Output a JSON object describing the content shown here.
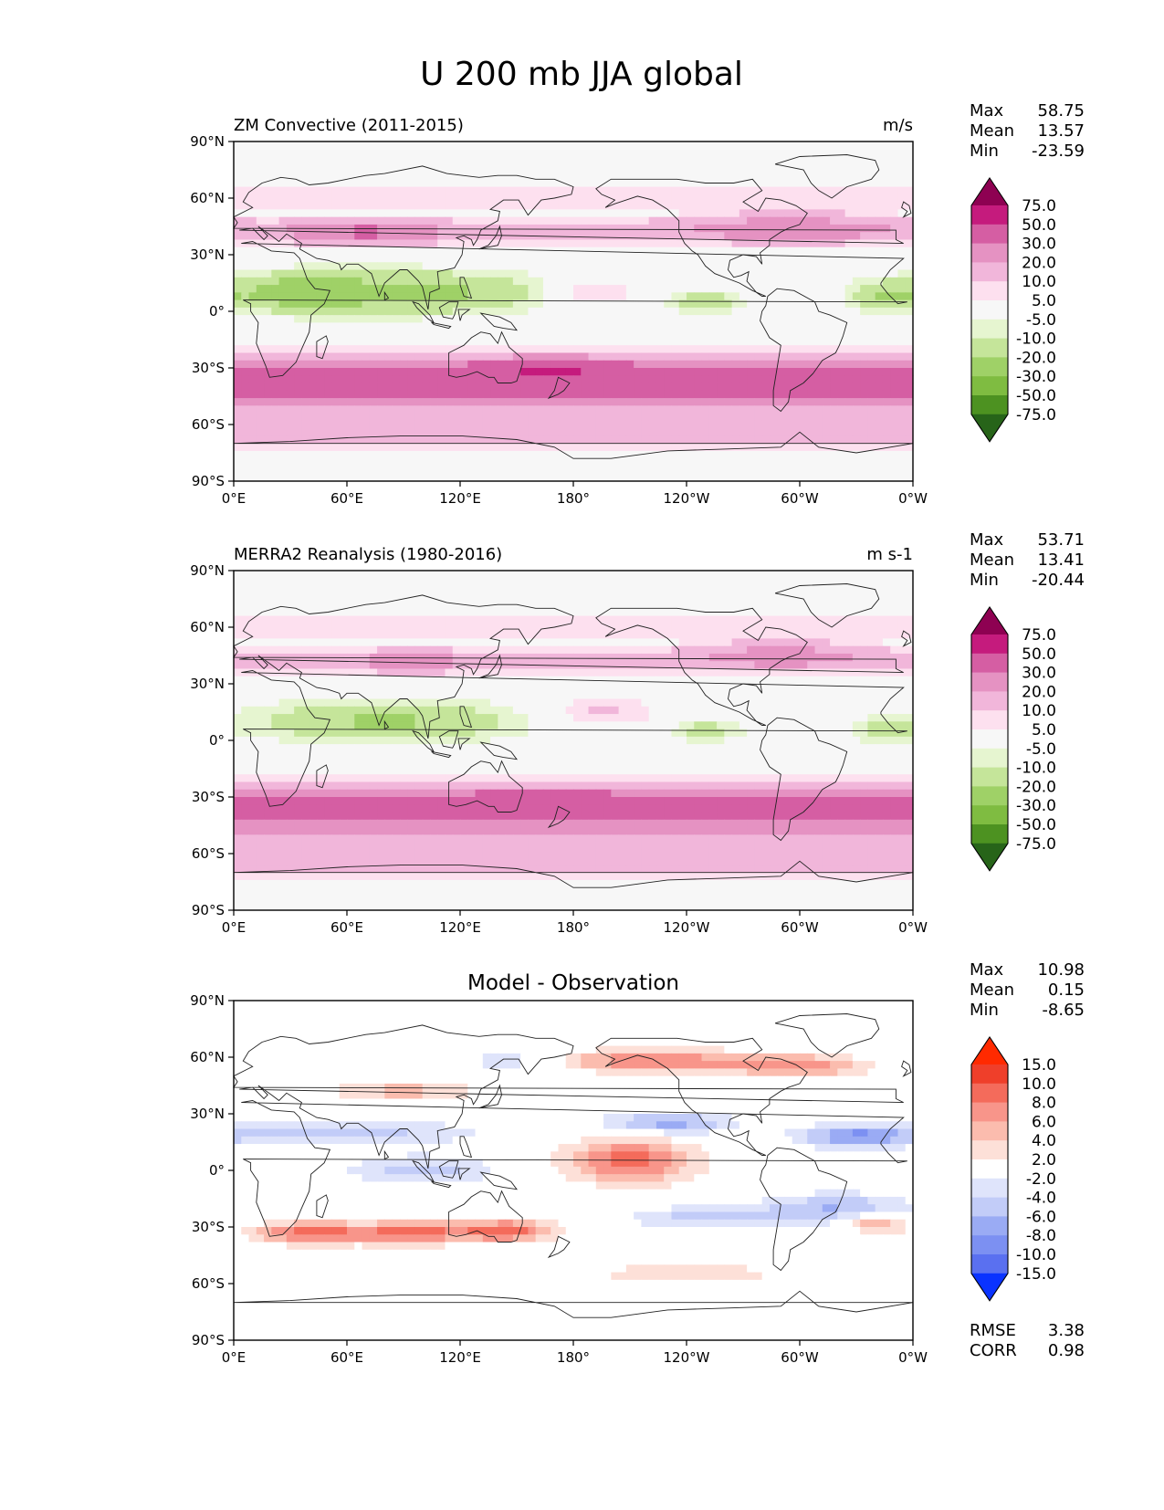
{
  "title": "U 200 mb JJA global",
  "colors": {
    "pos": [
      "#f7f7f7",
      "#fde0ef",
      "#f1b6da",
      "#e592c2",
      "#d55ea3",
      "#c51b7d",
      "#8e0152"
    ],
    "neg": [
      "#f7f7f7",
      "#e6f5d0",
      "#c5e59a",
      "#9fd167",
      "#7fbc41",
      "#4d9221",
      "#276419"
    ],
    "diff_pos": [
      "#ffffff",
      "#fde0d8",
      "#fbbcae",
      "#f8958a",
      "#f46b5b",
      "#ef3f2a",
      "#ff2a00"
    ],
    "diff_neg": [
      "#ffffff",
      "#dfe4fb",
      "#c2ccf8",
      "#9aabf4",
      "#7c90f2",
      "#5a70f0",
      "#0a33ff"
    ],
    "ocean": "#f7f7f7",
    "coast": "#222222"
  },
  "axes": {
    "lat_ticks": [
      "90°N",
      "60°N",
      "30°N",
      "0°",
      "30°S",
      "60°S",
      "90°S"
    ],
    "lon_ticks": [
      "0°E",
      "60°E",
      "120°E",
      "180°",
      "120°W",
      "60°W",
      "0°W"
    ]
  },
  "panels": [
    {
      "id": "model",
      "left_title": "ZM Convective (2011-2015)",
      "center_title": "",
      "right_title": "m/s",
      "stats": [
        {
          "label": "Max",
          "value": "58.75"
        },
        {
          "label": "Mean",
          "value": "13.57"
        },
        {
          "label": "Min",
          "value": "-23.59"
        }
      ],
      "colorbar_labels": [
        "75.0",
        "50.0",
        "30.0",
        "20.0",
        "10.0",
        "5.0",
        "-5.0",
        "-10.0",
        "-20.0",
        "-30.0",
        "-50.0",
        "-75.0"
      ],
      "metrics": []
    },
    {
      "id": "obs",
      "left_title": "MERRA2 Reanalysis (1980-2016)",
      "center_title": "",
      "right_title": "m s-1",
      "stats": [
        {
          "label": "Max",
          "value": "53.71"
        },
        {
          "label": "Mean",
          "value": "13.41"
        },
        {
          "label": "Min",
          "value": "-20.44"
        }
      ],
      "colorbar_labels": [
        "75.0",
        "50.0",
        "30.0",
        "20.0",
        "10.0",
        "5.0",
        "-5.0",
        "-10.0",
        "-20.0",
        "-30.0",
        "-50.0",
        "-75.0"
      ],
      "metrics": []
    },
    {
      "id": "diff",
      "left_title": "",
      "center_title": "Model - Observation",
      "right_title": "",
      "stats": [
        {
          "label": "Max",
          "value": "10.98"
        },
        {
          "label": "Mean",
          "value": "0.15"
        },
        {
          "label": "Min",
          "value": "-8.65"
        }
      ],
      "colorbar_labels": [
        "15.0",
        "10.0",
        "8.0",
        "6.0",
        "4.0",
        "2.0",
        "-2.0",
        "-4.0",
        "-6.0",
        "-8.0",
        "-10.0",
        "-15.0"
      ],
      "metrics": [
        {
          "label": "RMSE",
          "value": "3.38"
        },
        {
          "label": "CORR",
          "value": "0.98"
        }
      ]
    }
  ],
  "chart_data": [
    {
      "type": "heatmap",
      "title": "ZM Convective (2011-2015)",
      "units": "m/s",
      "variable": "U 200 mb JJA",
      "xlim": [
        0,
        360
      ],
      "ylim": [
        -90,
        90
      ],
      "levels": [
        -75,
        -50,
        -30,
        -20,
        -10,
        -5,
        5,
        10,
        20,
        30,
        50,
        75
      ],
      "features": [
        {
          "kind": "band",
          "lat": -37,
          "width": 13,
          "amp": 38
        },
        {
          "kind": "band",
          "lat": 42,
          "width": 7,
          "amp": 20
        },
        {
          "kind": "band",
          "lat": 60,
          "width": 6,
          "amp": 8
        },
        {
          "kind": "band",
          "lat": -62,
          "width": 12,
          "amp": 18
        },
        {
          "kind": "blob",
          "lon": 168,
          "lat": -30,
          "rlon": 40,
          "rlat": 6,
          "amp": 22
        },
        {
          "kind": "blob",
          "lon": 70,
          "lat": 42,
          "rlon": 28,
          "rlat": 5,
          "amp": 14
        },
        {
          "kind": "blob",
          "lon": 295,
          "lat": 48,
          "rlon": 38,
          "rlat": 7,
          "amp": 14
        },
        {
          "kind": "blob",
          "lon": 90,
          "lat": 10,
          "rlon": 75,
          "rlat": 11,
          "amp": -26
        },
        {
          "kind": "blob",
          "lon": 30,
          "lat": 10,
          "rlon": 30,
          "rlat": 10,
          "amp": -16
        },
        {
          "kind": "blob",
          "lon": 250,
          "lat": 5,
          "rlon": 20,
          "rlat": 6,
          "amp": -16
        },
        {
          "kind": "blob",
          "lon": 345,
          "lat": 8,
          "rlon": 18,
          "rlat": 8,
          "amp": -18
        },
        {
          "kind": "blob",
          "lon": 190,
          "lat": 10,
          "rlon": 25,
          "rlat": 8,
          "amp": 14
        }
      ],
      "stats": {
        "max": 58.75,
        "mean": 13.57,
        "min": -23.59
      }
    },
    {
      "type": "heatmap",
      "title": "MERRA2 Reanalysis (1980-2016)",
      "units": "m s-1",
      "variable": "U 200 mb JJA",
      "xlim": [
        0,
        360
      ],
      "ylim": [
        -90,
        90
      ],
      "levels": [
        -75,
        -50,
        -30,
        -20,
        -10,
        -5,
        5,
        10,
        20,
        30,
        50,
        75
      ],
      "features": [
        {
          "kind": "band",
          "lat": -37,
          "width": 13,
          "amp": 36
        },
        {
          "kind": "band",
          "lat": 42,
          "width": 7,
          "amp": 18
        },
        {
          "kind": "band",
          "lat": 60,
          "width": 6,
          "amp": 8
        },
        {
          "kind": "band",
          "lat": -62,
          "width": 12,
          "amp": 17
        },
        {
          "kind": "blob",
          "lon": 165,
          "lat": -30,
          "rlon": 40,
          "rlat": 5,
          "amp": 20
        },
        {
          "kind": "blob",
          "lon": 95,
          "lat": 42,
          "rlon": 20,
          "rlat": 5,
          "amp": 14
        },
        {
          "kind": "blob",
          "lon": 290,
          "lat": 48,
          "rlon": 38,
          "rlat": 7,
          "amp": 14
        },
        {
          "kind": "blob",
          "lon": 80,
          "lat": 10,
          "rlon": 70,
          "rlat": 11,
          "amp": -22
        },
        {
          "kind": "blob",
          "lon": 250,
          "lat": 5,
          "rlon": 20,
          "rlat": 6,
          "amp": -14
        },
        {
          "kind": "blob",
          "lon": 345,
          "lat": 5,
          "rlon": 15,
          "rlat": 6,
          "amp": -14
        },
        {
          "kind": "blob",
          "lon": 195,
          "lat": 15,
          "rlon": 30,
          "rlat": 8,
          "amp": 12
        }
      ],
      "stats": {
        "max": 53.71,
        "mean": 13.41,
        "min": -20.44
      }
    },
    {
      "type": "heatmap",
      "title": "Model - Observation",
      "units": "",
      "variable": "U 200 mb JJA difference",
      "xlim": [
        0,
        360
      ],
      "ylim": [
        -90,
        90
      ],
      "levels": [
        -15,
        -10,
        -8,
        -6,
        -4,
        -2,
        2,
        4,
        6,
        8,
        10,
        15
      ],
      "features": [
        {
          "kind": "blob",
          "lon": 40,
          "lat": -33,
          "rlon": 30,
          "rlat": 6,
          "amp": 9
        },
        {
          "kind": "blob",
          "lon": 95,
          "lat": -33,
          "rlon": 30,
          "rlat": 6,
          "amp": 9
        },
        {
          "kind": "blob",
          "lon": 145,
          "lat": -32,
          "rlon": 25,
          "rlat": 6,
          "amp": 9
        },
        {
          "kind": "blob",
          "lon": 150,
          "lat": 58,
          "rlon": 30,
          "rlat": 6,
          "amp": -4
        },
        {
          "kind": "blob",
          "lon": 220,
          "lat": 58,
          "rlon": 55,
          "rlat": 6,
          "amp": 8
        },
        {
          "kind": "blob",
          "lon": 300,
          "lat": 55,
          "rlon": 35,
          "rlat": 6,
          "amp": 7
        },
        {
          "kind": "blob",
          "lon": 210,
          "lat": 5,
          "rlon": 35,
          "rlat": 12,
          "amp": 9
        },
        {
          "kind": "blob",
          "lon": 90,
          "lat": 42,
          "rlon": 40,
          "rlat": 5,
          "amp": 5
        },
        {
          "kind": "blob",
          "lon": 60,
          "lat": 20,
          "rlon": 70,
          "rlat": 7,
          "amp": -5
        },
        {
          "kind": "blob",
          "lon": 230,
          "lat": 25,
          "rlon": 35,
          "rlat": 6,
          "amp": -7
        },
        {
          "kind": "blob",
          "lon": 330,
          "lat": 18,
          "rlon": 30,
          "rlat": 6,
          "amp": -8
        },
        {
          "kind": "blob",
          "lon": 100,
          "lat": 0,
          "rlon": 40,
          "rlat": 8,
          "amp": -5
        },
        {
          "kind": "blob",
          "lon": 250,
          "lat": -25,
          "rlon": 40,
          "rlat": 6,
          "amp": -5
        },
        {
          "kind": "blob",
          "lon": 320,
          "lat": -20,
          "rlon": 40,
          "rlat": 8,
          "amp": -6
        },
        {
          "kind": "blob",
          "lon": 240,
          "lat": -55,
          "rlon": 50,
          "rlat": 6,
          "amp": 4
        },
        {
          "kind": "blob",
          "lon": 340,
          "lat": -28,
          "rlon": 15,
          "rlat": 5,
          "amp": 7
        }
      ],
      "stats": {
        "max": 10.98,
        "mean": 0.15,
        "min": -8.65,
        "rmse": 3.38,
        "corr": 0.98
      }
    }
  ]
}
